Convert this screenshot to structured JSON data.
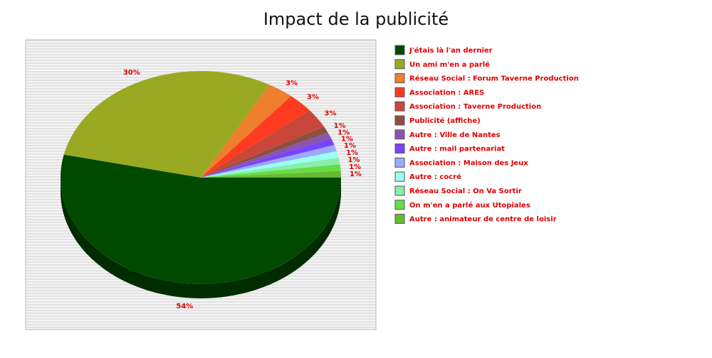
{
  "chart_data": {
    "type": "pie",
    "title": "Impact de la publicité",
    "categories": [
      "J'étais là l'an dernier",
      "Un ami m'en a parlé",
      "Réseau Social : Forum Taverne Production",
      "Association : ARES",
      "Association : Taverne Production",
      "Publicité (affiche)",
      "Autre : Ville de Nantes",
      "Autre : mail partenariat",
      "Association : Maison des Jeux",
      "Autre : cocré",
      "Réseau Social : On Va Sortir",
      "On m'en a parlé aux Utopiales",
      "Autre : animateur de centre de loisir"
    ],
    "values": [
      54,
      30,
      3,
      3,
      3,
      1,
      1,
      1,
      1,
      1,
      1,
      1,
      1
    ],
    "value_labels": [
      "54%",
      "30%",
      "3%",
      "3%",
      "3%",
      "1%",
      "1%",
      "1%",
      "1%",
      "1%",
      "1%",
      "1%",
      "1%"
    ],
    "colors": [
      "#004a00",
      "#99aa22",
      "#ee7f2d",
      "#ff3b1f",
      "#c8473a",
      "#8b5040",
      "#8855b0",
      "#7744ff",
      "#99aaff",
      "#99ffee",
      "#88eeaa",
      "#66dd44",
      "#66bb33"
    ],
    "legend": "right"
  }
}
